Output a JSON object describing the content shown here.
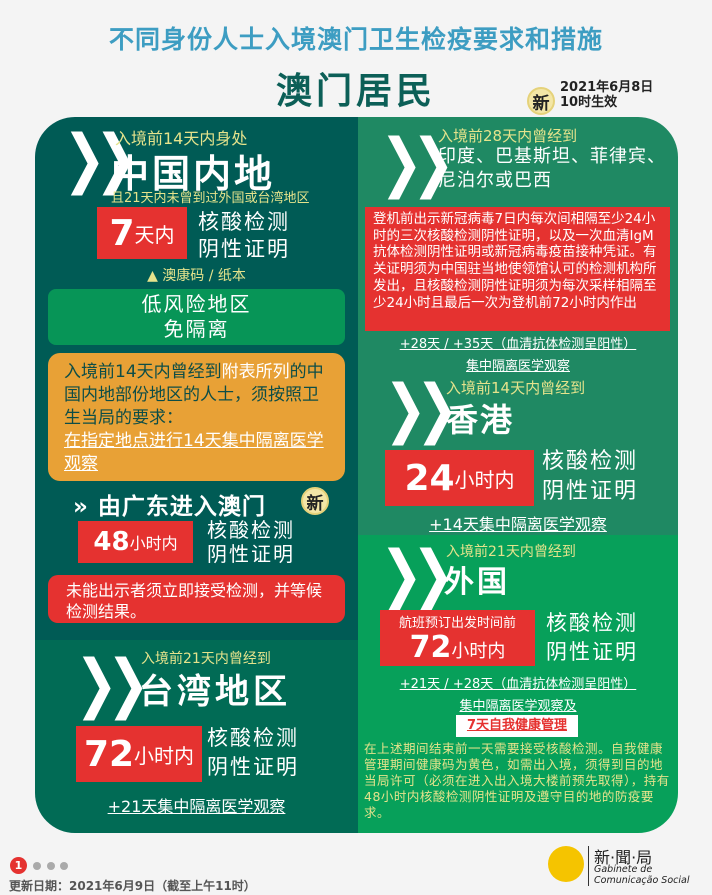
{
  "header": {
    "title": "不同身份人士入境澳门卫生检疫要求和措施",
    "subtitle": "澳门居民",
    "new_badge": "新",
    "effective_line1": "2021年6月8日",
    "effective_line2": "10时生效"
  },
  "mainland": {
    "pre": "入境前14天内身处",
    "place": "中国内地",
    "cond": "且21天内未曾到过外国或台湾地区",
    "num": "7",
    "unit": "天内",
    "test1": "核酸检测",
    "test2": "阴性证明",
    "code": "▲ 澳康码 / 纸本",
    "low1": "低风险地区",
    "low2": "免隔离",
    "orange_pre": "入境前14天内曾经到",
    "orange_hl": "附表所列",
    "orange_rest": "的中国内地部份地区的人士，须按照卫生当局的要求：",
    "orange_link": "在指定地点进行14天集中隔离医学观察"
  },
  "guangdong": {
    "title": "由广东进入澳门",
    "new_badge": "新",
    "num": "48",
    "unit": "小时内",
    "test1": "核酸检测",
    "test2": "阴性证明",
    "warning": "未能出示者须立即接受检测，并等候检测结果。"
  },
  "taiwan": {
    "pre": "入境前21天内曾经到",
    "place": "台湾地区",
    "num": "72",
    "unit": "小时内",
    "test1": "核酸检测",
    "test2": "阴性证明",
    "quarantine": "+21天集中隔离医学观察"
  },
  "india": {
    "pre": "入境前28天内曾经到",
    "places": "印度、巴基斯坦、菲律宾、尼泊尔或巴西",
    "requirement": "登机前出示新冠病毒7日内每次间相隔至少24小时的三次核酸检测阴性证明，以及一次血清IgM抗体检测阴性证明或新冠病毒疫苗接种凭证。有关证明须为中国驻当地使领馆认可的检测机构所发出，且核酸检测阴性证明须为每次采样相隔至少24小时且最后一次为登机前72小时内作出",
    "days": "+28天 / +35天（血清抗体检测呈阳性）",
    "quarantine": "集中隔离医学观察"
  },
  "hongkong": {
    "pre": "入境前14天内曾经到",
    "place": "香港",
    "num": "24",
    "unit": "小时内",
    "test1": "核酸检测",
    "test2": "阴性证明",
    "quarantine": "+14天集中隔离医学观察"
  },
  "foreign": {
    "pre": "入境前21天内曾经到",
    "place": "外国",
    "flight": "航班预订出发时间前",
    "num": "72",
    "unit": "小时内",
    "test1": "核酸检测",
    "test2": "阴性证明",
    "days": "+21天 / +28天（血清抗体检测呈阳性）",
    "quarantine": "集中隔离医学观察及",
    "self": "7天自我健康管理",
    "note": "在上述期间结束前一天需要接受核酸检测。自我健康管理期间健康码为黄色，如需出入境，须得到目的地当局许可（必须在进入出入境大楼前预先取得），持有48小时内核酸检测阴性证明及遵守目的地的防疫要求。"
  },
  "footer": {
    "page": "1",
    "updated": "更新日期：2021年6月9日（截至上午11时）",
    "logo_cn": "新·聞·局",
    "logo_pt1": "Gabinete de",
    "logo_pt2": "Comunicação Social",
    "logo_mark": "GCS"
  },
  "colors": {
    "dark_teal": "#005b55",
    "green": "#07a05a",
    "red": "#e53230",
    "orange": "#e8a136",
    "yellow_text": "#e5e38c"
  }
}
